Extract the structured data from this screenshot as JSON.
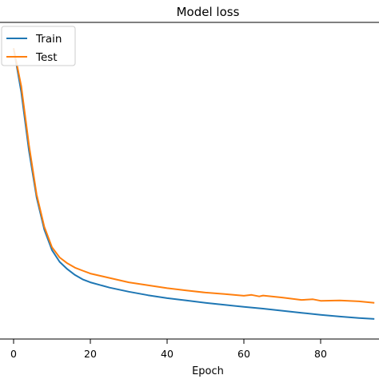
{
  "chart_data": {
    "type": "line",
    "title": "Model loss",
    "xlabel": "Epoch",
    "ylabel": "",
    "xlim": [
      -3,
      94
    ],
    "ylim": [
      0.0,
      1.0
    ],
    "x_ticks": [
      0,
      20,
      40,
      60,
      80
    ],
    "grid": false,
    "legend_position": "top-left",
    "series": [
      {
        "name": "Train",
        "color": "#1f77b4",
        "x": [
          0,
          2,
          4,
          6,
          8,
          10,
          12,
          14,
          16,
          18,
          20,
          25,
          30,
          35,
          40,
          45,
          50,
          55,
          60,
          65,
          70,
          75,
          80,
          85,
          90,
          94
        ],
        "values": [
          0.95,
          0.8,
          0.6,
          0.44,
          0.33,
          0.26,
          0.22,
          0.195,
          0.175,
          0.16,
          0.15,
          0.132,
          0.118,
          0.106,
          0.096,
          0.088,
          0.08,
          0.073,
          0.066,
          0.06,
          0.053,
          0.046,
          0.039,
          0.033,
          0.028,
          0.025
        ]
      },
      {
        "name": "Test",
        "color": "#ff7f0e",
        "x": [
          0,
          2,
          4,
          6,
          8,
          10,
          12,
          14,
          16,
          18,
          20,
          25,
          30,
          35,
          40,
          45,
          50,
          55,
          60,
          62,
          64,
          65,
          70,
          75,
          78,
          80,
          85,
          90,
          94
        ],
        "values": [
          0.95,
          0.82,
          0.62,
          0.45,
          0.34,
          0.27,
          0.235,
          0.215,
          0.2,
          0.19,
          0.18,
          0.165,
          0.15,
          0.14,
          0.13,
          0.122,
          0.115,
          0.11,
          0.104,
          0.107,
          0.102,
          0.105,
          0.098,
          0.09,
          0.092,
          0.087,
          0.088,
          0.085,
          0.08
        ]
      }
    ]
  }
}
